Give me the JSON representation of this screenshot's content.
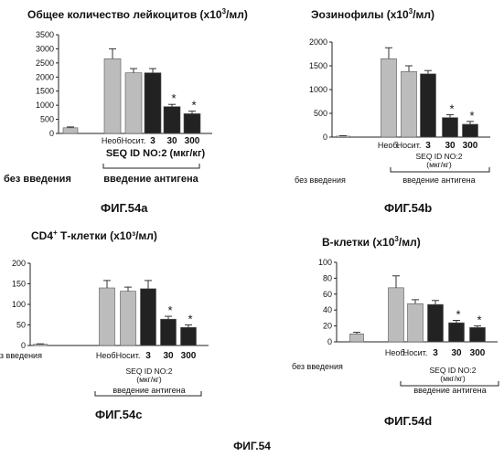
{
  "figure_label": "ФИГ.54",
  "chart_data": [
    {
      "id": "a",
      "type": "bar",
      "title_main": "Общее количество лейкоцитов (x10",
      "title_sup": "3",
      "title_tail": "/мл)",
      "caption": "ФИГ.54a",
      "categories": [
        "без введения",
        "Необ.",
        "Носит.",
        "3",
        "30",
        "300"
      ],
      "values": [
        200,
        2650,
        2150,
        2150,
        950,
        700
      ],
      "errors": [
        30,
        350,
        150,
        150,
        80,
        90
      ],
      "significant": [
        false,
        false,
        false,
        false,
        true,
        true
      ],
      "star": "*",
      "ylim": [
        0,
        3500
      ],
      "yticks": [
        0,
        500,
        1000,
        1500,
        2000,
        2500,
        3000,
        3500
      ],
      "seq_label": "SEQ ID NO:2 (мкг/кг)",
      "seq_label_line2": "",
      "antigen_label": "введение антигена",
      "no_treatment_label": "без введения",
      "colors": [
        "#bcbcbc",
        "#bcbcbc",
        "#bcbcbc",
        "#222222",
        "#222222",
        "#222222"
      ]
    },
    {
      "id": "b",
      "type": "bar",
      "title_main": "Эозинофилы (x10",
      "title_sup": "3",
      "title_tail": "/мл)",
      "caption": "ФИГ.54b",
      "categories": [
        "без введения",
        "Необ.",
        "Носит.",
        "3",
        "30",
        "300"
      ],
      "values": [
        20,
        1650,
        1380,
        1330,
        410,
        270
      ],
      "errors": [
        10,
        230,
        120,
        70,
        60,
        60
      ],
      "significant": [
        false,
        false,
        false,
        false,
        true,
        true
      ],
      "star": "*",
      "ylim": [
        0,
        2000
      ],
      "yticks": [
        0,
        500,
        1000,
        1500,
        2000
      ],
      "seq_label": "SEQ ID NO:2",
      "seq_label_line2": "(мкг/кг)",
      "antigen_label": "введение антигена",
      "no_treatment_label": "без введения",
      "colors": [
        "#bcbcbc",
        "#bcbcbc",
        "#bcbcbc",
        "#222222",
        "#222222",
        "#222222"
      ]
    },
    {
      "id": "c",
      "type": "bar",
      "title_main": "CD4",
      "title_sup": "+",
      "title_tail": " Т-клетки (x10³/мл)",
      "caption": "ФИГ.54c",
      "categories": [
        "без введения",
        "Необ.",
        "Носит.",
        "3",
        "30",
        "300"
      ],
      "values": [
        3,
        140,
        132,
        138,
        64,
        44
      ],
      "errors": [
        1,
        18,
        10,
        20,
        7,
        6
      ],
      "significant": [
        false,
        false,
        false,
        false,
        true,
        true
      ],
      "star": "*",
      "ylim": [
        0,
        200
      ],
      "yticks": [
        0,
        50,
        100,
        150,
        200
      ],
      "seq_label": "SEQ ID NO:2",
      "seq_label_line2": "(мкг/кг)",
      "antigen_label": "введение антигена",
      "no_treatment_label": "без введения",
      "colors": [
        "#bcbcbc",
        "#bcbcbc",
        "#bcbcbc",
        "#222222",
        "#222222",
        "#222222"
      ]
    },
    {
      "id": "d",
      "type": "bar",
      "title_main": "В-клетки (x10",
      "title_sup": "3",
      "title_tail": "/мл)",
      "caption": "ФИГ.54d",
      "categories": [
        "без введения",
        "Необ.",
        "Носит.",
        "3",
        "30",
        "300"
      ],
      "values": [
        10,
        68,
        48,
        47,
        24,
        18
      ],
      "errors": [
        2,
        15,
        5,
        5,
        3,
        2
      ],
      "significant": [
        false,
        false,
        false,
        false,
        true,
        true
      ],
      "star": "*",
      "ylim": [
        0,
        100
      ],
      "yticks": [
        0,
        20,
        40,
        60,
        80,
        100
      ],
      "seq_label": "SEQ ID NO:2",
      "seq_label_line2": "(мкг/кг)",
      "antigen_label": "введение антигена",
      "no_treatment_label": "без введения",
      "colors": [
        "#bcbcbc",
        "#bcbcbc",
        "#bcbcbc",
        "#222222",
        "#222222",
        "#222222"
      ]
    }
  ]
}
